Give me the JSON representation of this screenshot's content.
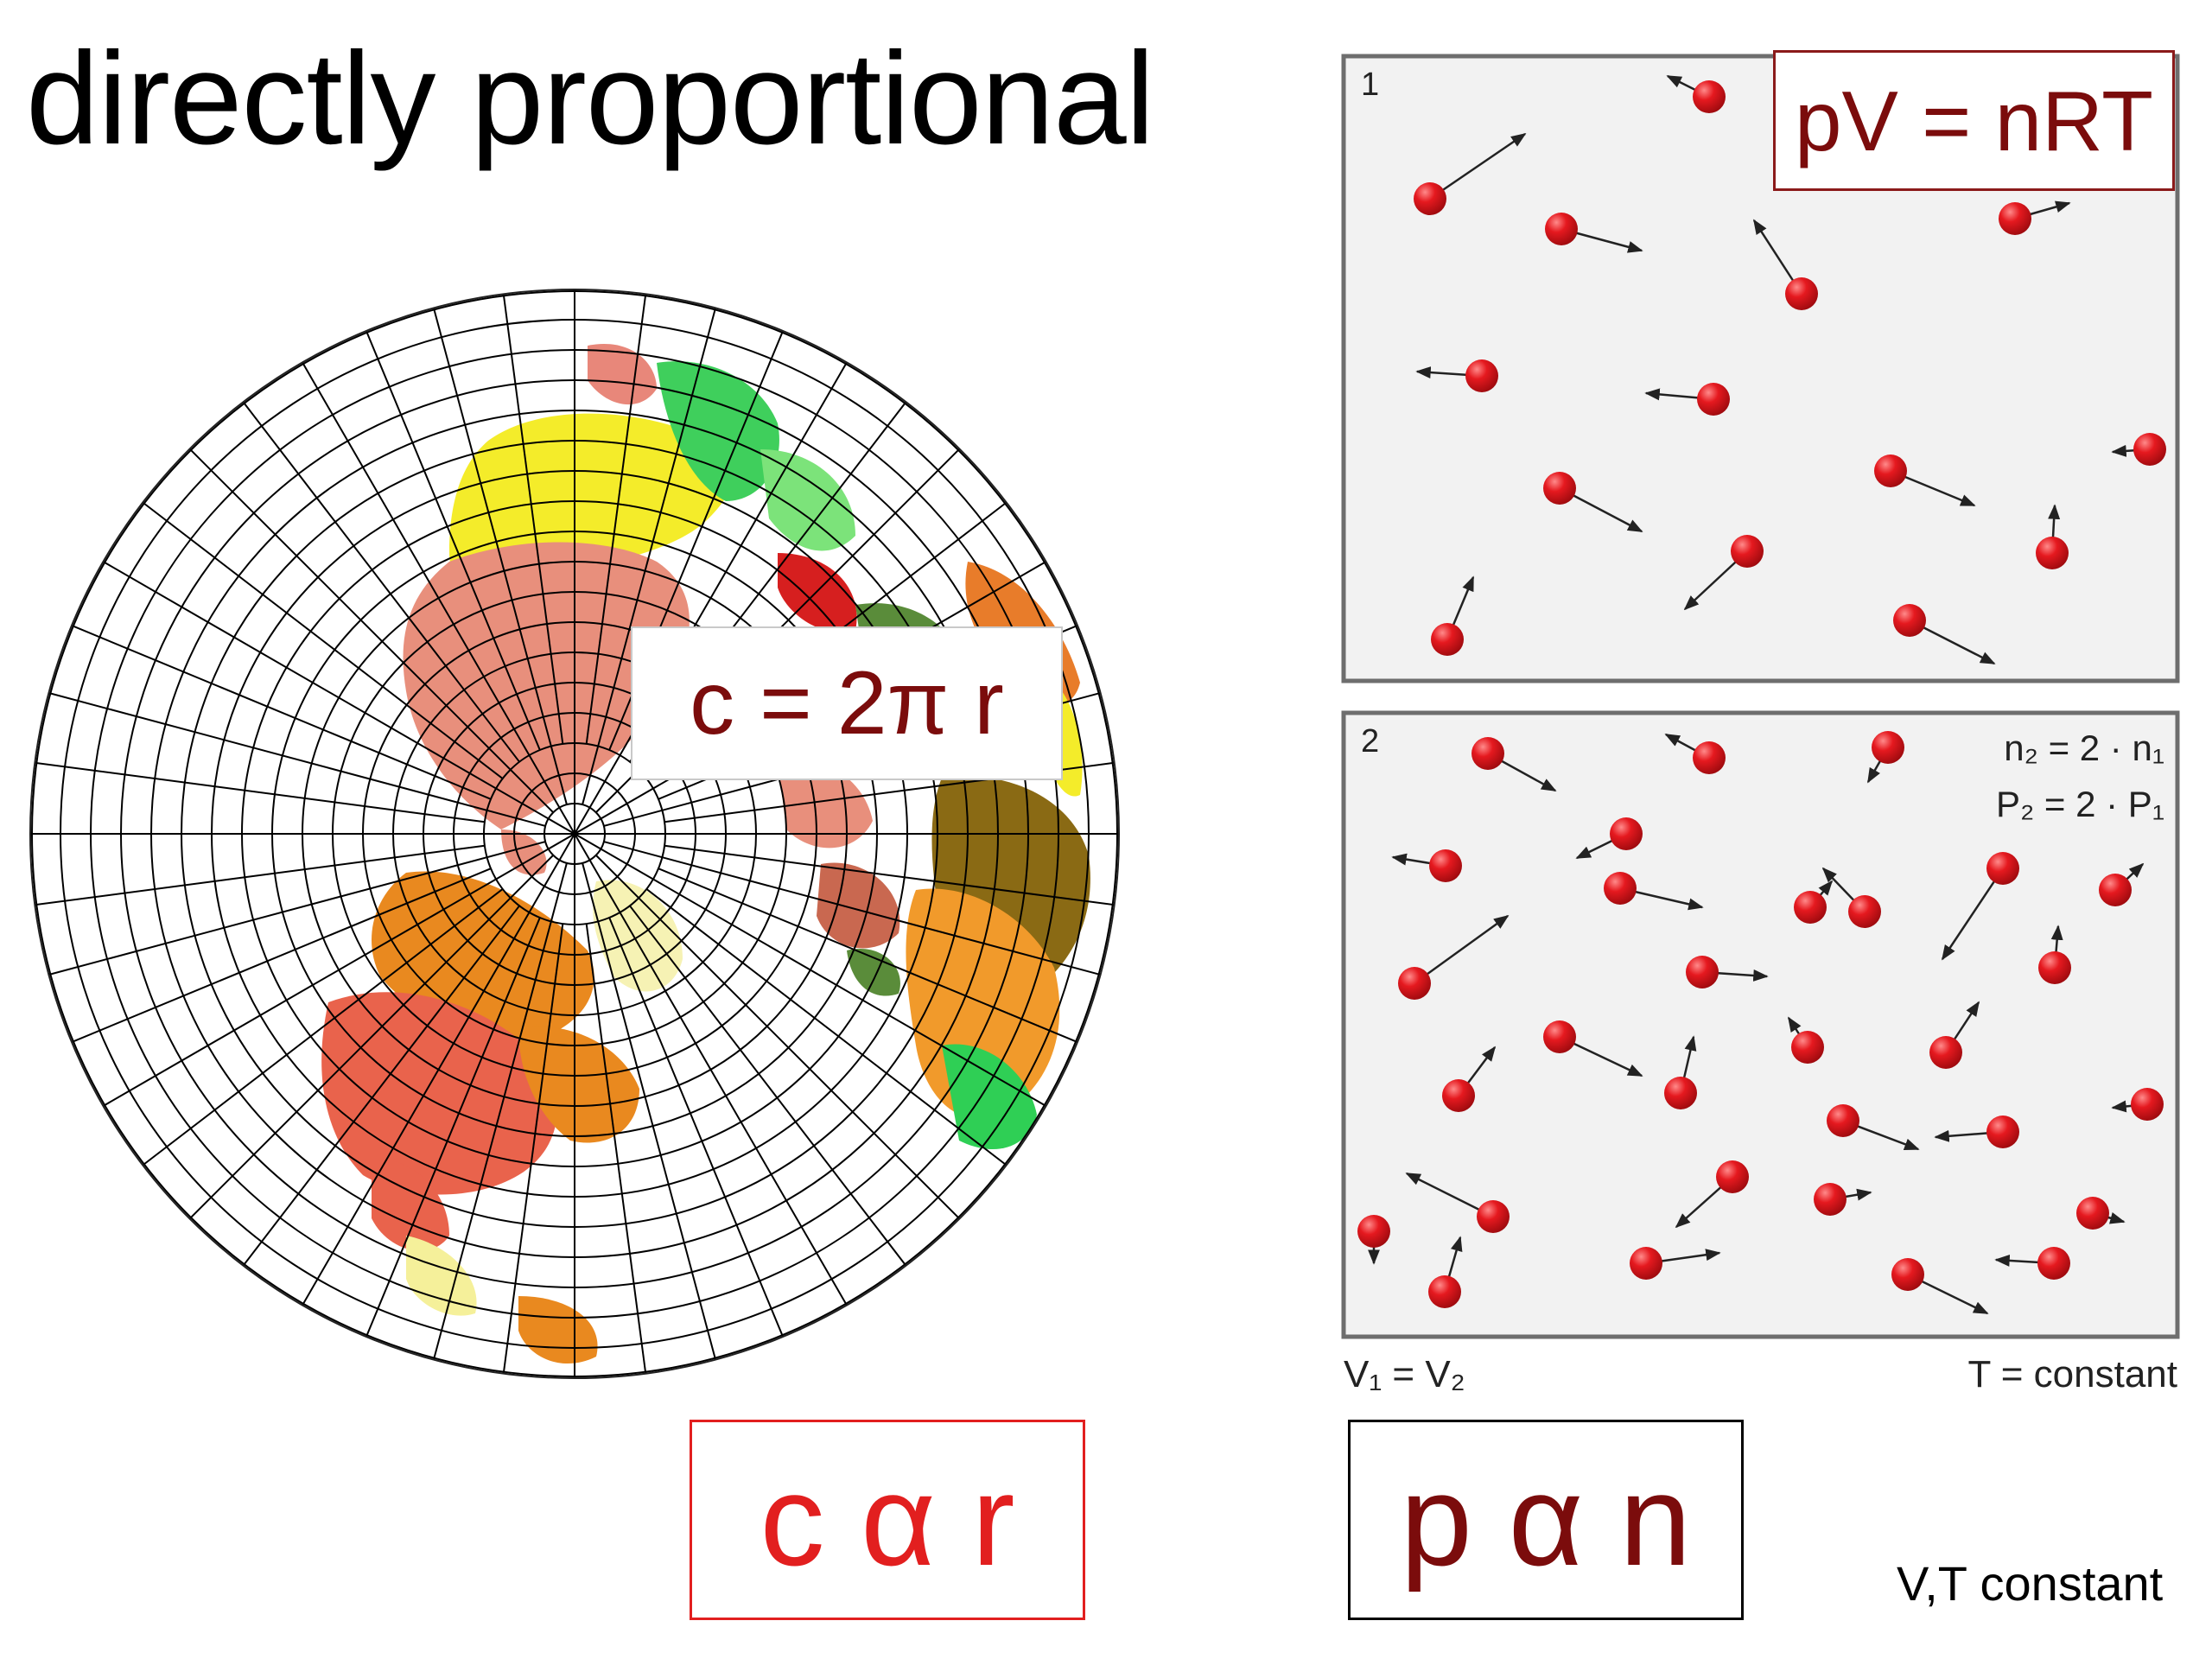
{
  "slide": {
    "title": "directly proportional",
    "circumference_formula": "c  =  2π r",
    "proportion_circle": "c  α  r",
    "ideal_gas_law": "pV = nRT",
    "proportion_gas": "p α  n",
    "note": "V,T constant"
  },
  "gas_panels": {
    "panel1_label": "1",
    "panel2_label": "2",
    "n_relation": "n₂ = 2 · n₁",
    "p_relation": "P₂ = 2 · P₁",
    "volume_relation": "V₁ = V₂",
    "temperature_relation": "T = constant"
  },
  "colors": {
    "title": "#000000",
    "formula_red": "#7b0c0c",
    "bright_red": "#e21f1f",
    "molecule": "#e0141a",
    "panel_bg": "#f2f2f2",
    "panel_border": "#6e6e6e"
  },
  "globe": {
    "projection": "polar azimuthal",
    "graticule": true
  }
}
